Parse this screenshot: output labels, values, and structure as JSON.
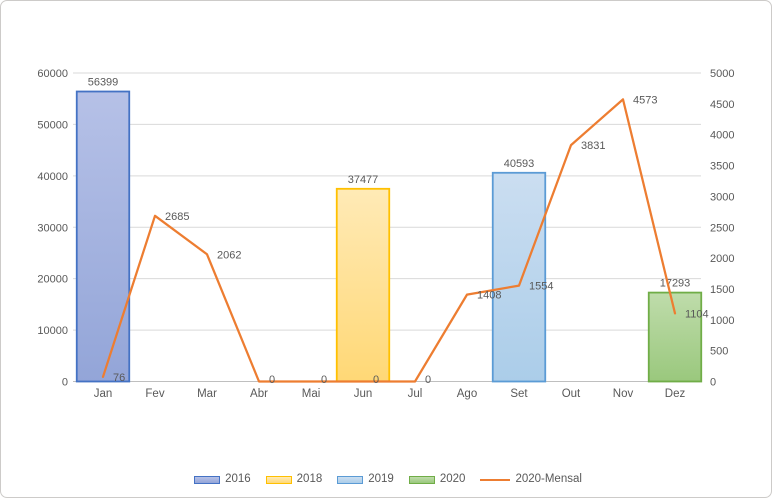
{
  "chart_data": {
    "type": "combo-bar-line",
    "title": "",
    "categories": [
      "Jan",
      "Fev",
      "Mar",
      "Abr",
      "Mai",
      "Jun",
      "Jul",
      "Ago",
      "Set",
      "Out",
      "Nov",
      "Dez"
    ],
    "bar_series": [
      {
        "name": "2016",
        "category": "Jan",
        "category_index": 0,
        "value": 56399,
        "label": "56399",
        "fill_top": "#B6C1E7",
        "fill_bottom": "#93A5D8",
        "border": "#4472C4"
      },
      {
        "name": "2018",
        "category": "Jun",
        "category_index": 5,
        "value": 37477,
        "label": "37477",
        "fill_top": "#FFEAB6",
        "fill_bottom": "#FFD876",
        "border": "#FFC000"
      },
      {
        "name": "2019",
        "category": "Set",
        "category_index": 8,
        "value": 40593,
        "label": "40593",
        "fill_top": "#CBDEF1",
        "fill_bottom": "#ABCDE9",
        "border": "#5B9BD5"
      },
      {
        "name": "2020",
        "category": "Dez",
        "category_index": 11,
        "value": 17293,
        "label": "17293",
        "fill_top": "#BFDCAB",
        "fill_bottom": "#9AC87D",
        "border": "#70AD47"
      }
    ],
    "line_series": {
      "name": "2020-Mensal",
      "color": "#ED7D31",
      "values": [
        76,
        2685,
        2062,
        0,
        0,
        0,
        0,
        1408,
        1554,
        3831,
        4573,
        1104
      ],
      "labels": [
        "76",
        "2685",
        "2062",
        "0",
        "0",
        "0",
        "0",
        "1408",
        "1554",
        "3831",
        "4573",
        "1104"
      ]
    },
    "left_axis": {
      "min": 0,
      "max": 60000,
      "step": 10000,
      "ticks": [
        "0",
        "10000",
        "20000",
        "30000",
        "40000",
        "50000",
        "60000"
      ]
    },
    "right_axis": {
      "min": 0,
      "max": 5000,
      "step": 500,
      "ticks": [
        "0",
        "500",
        "1000",
        "1500",
        "2000",
        "2500",
        "3000",
        "3500",
        "4000",
        "4500",
        "5000"
      ]
    },
    "grid": true,
    "legend_position": "bottom",
    "legend_items": [
      "2016",
      "2018",
      "2019",
      "2020",
      "2020-Mensal"
    ]
  },
  "colors": {
    "grid_line": "#D9D9D9",
    "axis_line": "#BFBFBF",
    "text": "#595959",
    "background": "#FFFFFF",
    "frame_border": "#CDCBC9"
  }
}
